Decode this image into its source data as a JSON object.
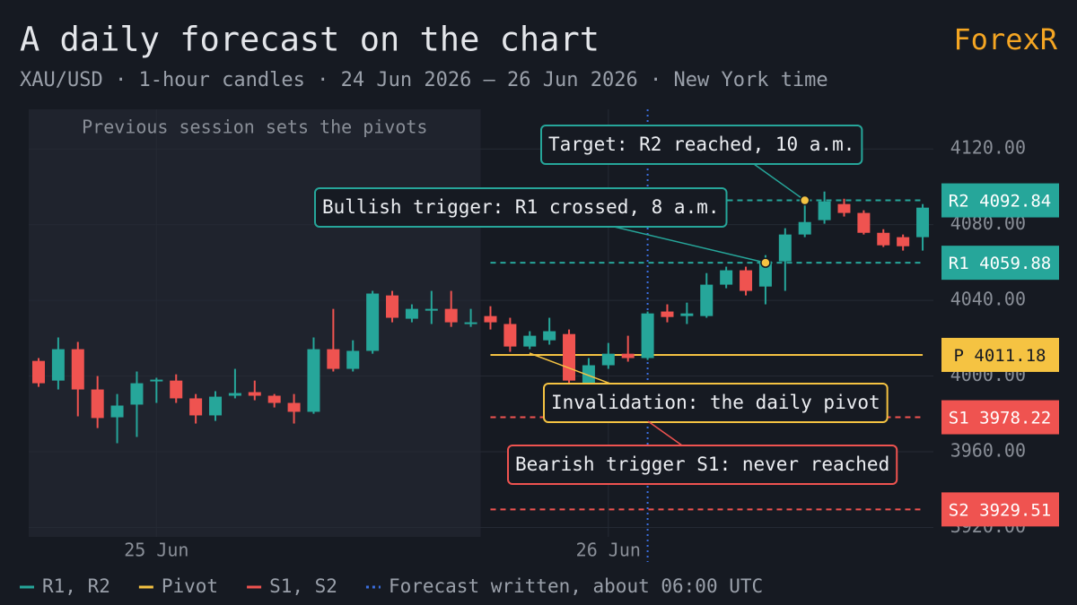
{
  "chart_data": {
    "type": "candlestick",
    "title": "A daily forecast on the chart",
    "subtitle": "XAU/USD · 1-hour candles · 24 Jun 2026 – 26 Jun 2026 · New York time",
    "brand": "ForexR",
    "categories": [
      null,
      null,
      null,
      null,
      null,
      null,
      "25 Jun",
      null,
      null,
      null,
      null,
      null,
      null,
      null,
      null,
      null,
      null,
      null,
      null,
      null,
      null,
      null,
      null,
      null,
      null,
      null,
      null,
      null,
      null,
      "26 Jun",
      null,
      null,
      null,
      null,
      null,
      null,
      null,
      null,
      null,
      null,
      null,
      null,
      null,
      null,
      null,
      null
    ],
    "ohlc": {
      "open": [
        4008.0,
        3997.6,
        4014.2,
        3992.9,
        3978.2,
        3984.9,
        3997.2,
        3997.6,
        3988.2,
        3979.2,
        3989.6,
        3991.5,
        3989.6,
        3985.8,
        3981.1,
        4014.2,
        4003.8,
        4013.3,
        4042.6,
        4030.3,
        4035.0,
        4035.5,
        4028.0,
        4031.7,
        4027.5,
        4015.6,
        4018.9,
        4022.2,
        3996.2,
        4005.7,
        4011.8,
        4009.5,
        4034.1,
        4031.7,
        4031.7,
        4048.3,
        4055.9,
        4047.3,
        4060.6,
        4074.8,
        4082.4,
        4090.9,
        4086.2,
        4075.7,
        4073.4,
        4073.4
      ],
      "high": [
        4009.5,
        4020.4,
        4018.0,
        4000.0,
        3990.5,
        4002.4,
        3999.1,
        4000.9,
        3990.5,
        3992.0,
        4003.8,
        3997.6,
        3990.5,
        3990.5,
        4020.4,
        4035.5,
        4018.9,
        4045.0,
        4045.0,
        4037.9,
        4045.0,
        4045.0,
        4035.5,
        4036.9,
        4030.8,
        4023.7,
        4030.8,
        4024.6,
        4009.5,
        4017.5,
        4021.3,
        4034.1,
        4037.9,
        4038.8,
        4054.4,
        4057.8,
        4057.8,
        4063.9,
        4078.1,
        4094.7,
        4097.5,
        4093.7,
        4087.6,
        4077.6,
        4074.8,
        4090.9
      ],
      "low": [
        3994.3,
        3992.9,
        3978.7,
        3972.5,
        3964.5,
        3967.8,
        3985.8,
        3985.8,
        3974.9,
        3976.3,
        3988.2,
        3987.2,
        3983.4,
        3974.9,
        3980.1,
        4002.4,
        4002.4,
        4011.8,
        4028.4,
        4028.4,
        4027.5,
        4026.0,
        4026.0,
        4024.6,
        4012.8,
        4014.2,
        4016.6,
        3994.3,
        3994.3,
        4003.8,
        4007.6,
        4008.5,
        4028.4,
        4027.5,
        4030.8,
        4046.4,
        4042.6,
        4037.9,
        4045.0,
        4073.4,
        4080.5,
        4084.3,
        4074.8,
        4068.2,
        4066.3,
        4066.3
      ],
      "close": [
        3996.2,
        4014.2,
        3992.9,
        3977.8,
        3984.4,
        3996.2,
        3998.1,
        3988.2,
        3979.2,
        3989.1,
        3991.0,
        3989.6,
        3985.8,
        3981.1,
        4014.2,
        4003.8,
        4013.3,
        4043.6,
        4030.8,
        4035.5,
        4035.5,
        4028.4,
        4028.4,
        4028.4,
        4015.6,
        4021.3,
        4023.7,
        3997.6,
        4005.7,
        4011.8,
        4009.5,
        4033.1,
        4031.2,
        4033.1,
        4048.3,
        4055.9,
        4045.0,
        4060.6,
        4074.8,
        4081.4,
        4092.3,
        4086.2,
        4075.7,
        4069.1,
        4068.6,
        4089.0
      ]
    },
    "up_color": "#26a69a",
    "down_color": "#ef5350",
    "ylim": [
      3915,
      4140
    ],
    "yticks": [
      {
        "value": 3920,
        "label": "3920.00"
      },
      {
        "value": 3960,
        "label": "3960.00"
      },
      {
        "value": 4000,
        "label": "4000.00"
      },
      {
        "value": 4040,
        "label": "4040.00"
      },
      {
        "value": 4080,
        "label": "4080.00"
      },
      {
        "value": 4120,
        "label": "4120.00"
      }
    ],
    "grid": true,
    "levels": [
      {
        "name": "R2",
        "value": 4092.84,
        "color": "#26a69a",
        "style": "dashed"
      },
      {
        "name": "R1",
        "value": 4059.88,
        "color": "#26a69a",
        "style": "dashed"
      },
      {
        "name": "P",
        "value": 4011.18,
        "color": "#f5c342",
        "style": "solid"
      },
      {
        "name": "S1",
        "value": 3978.22,
        "color": "#ef5350",
        "style": "dashed"
      },
      {
        "name": "S2",
        "value": 3929.51,
        "color": "#ef5350",
        "style": "dashed"
      }
    ],
    "session_shade": {
      "label": "Previous session sets the pivots",
      "color": "#1f232d"
    },
    "forecast_marker": {
      "label": "Forecast written, about 06:00 UTC",
      "color": "#3b6fe0"
    },
    "annotations": [
      {
        "text": "Target: R2 reached, 10 a.m.",
        "color": "#26a69a"
      },
      {
        "text": "Bullish trigger: R1 crossed, 8 a.m.",
        "color": "#26a69a"
      },
      {
        "text": "Invalidation: the daily pivot",
        "color": "#f5c342"
      },
      {
        "text": "Bearish trigger S1: never reached",
        "color": "#ef5350"
      }
    ],
    "legend": [
      {
        "label": "R1, R2",
        "color": "#26a69a"
      },
      {
        "label": "Pivot",
        "color": "#f5c342"
      },
      {
        "label": "S1, S2",
        "color": "#ef5350"
      }
    ]
  }
}
